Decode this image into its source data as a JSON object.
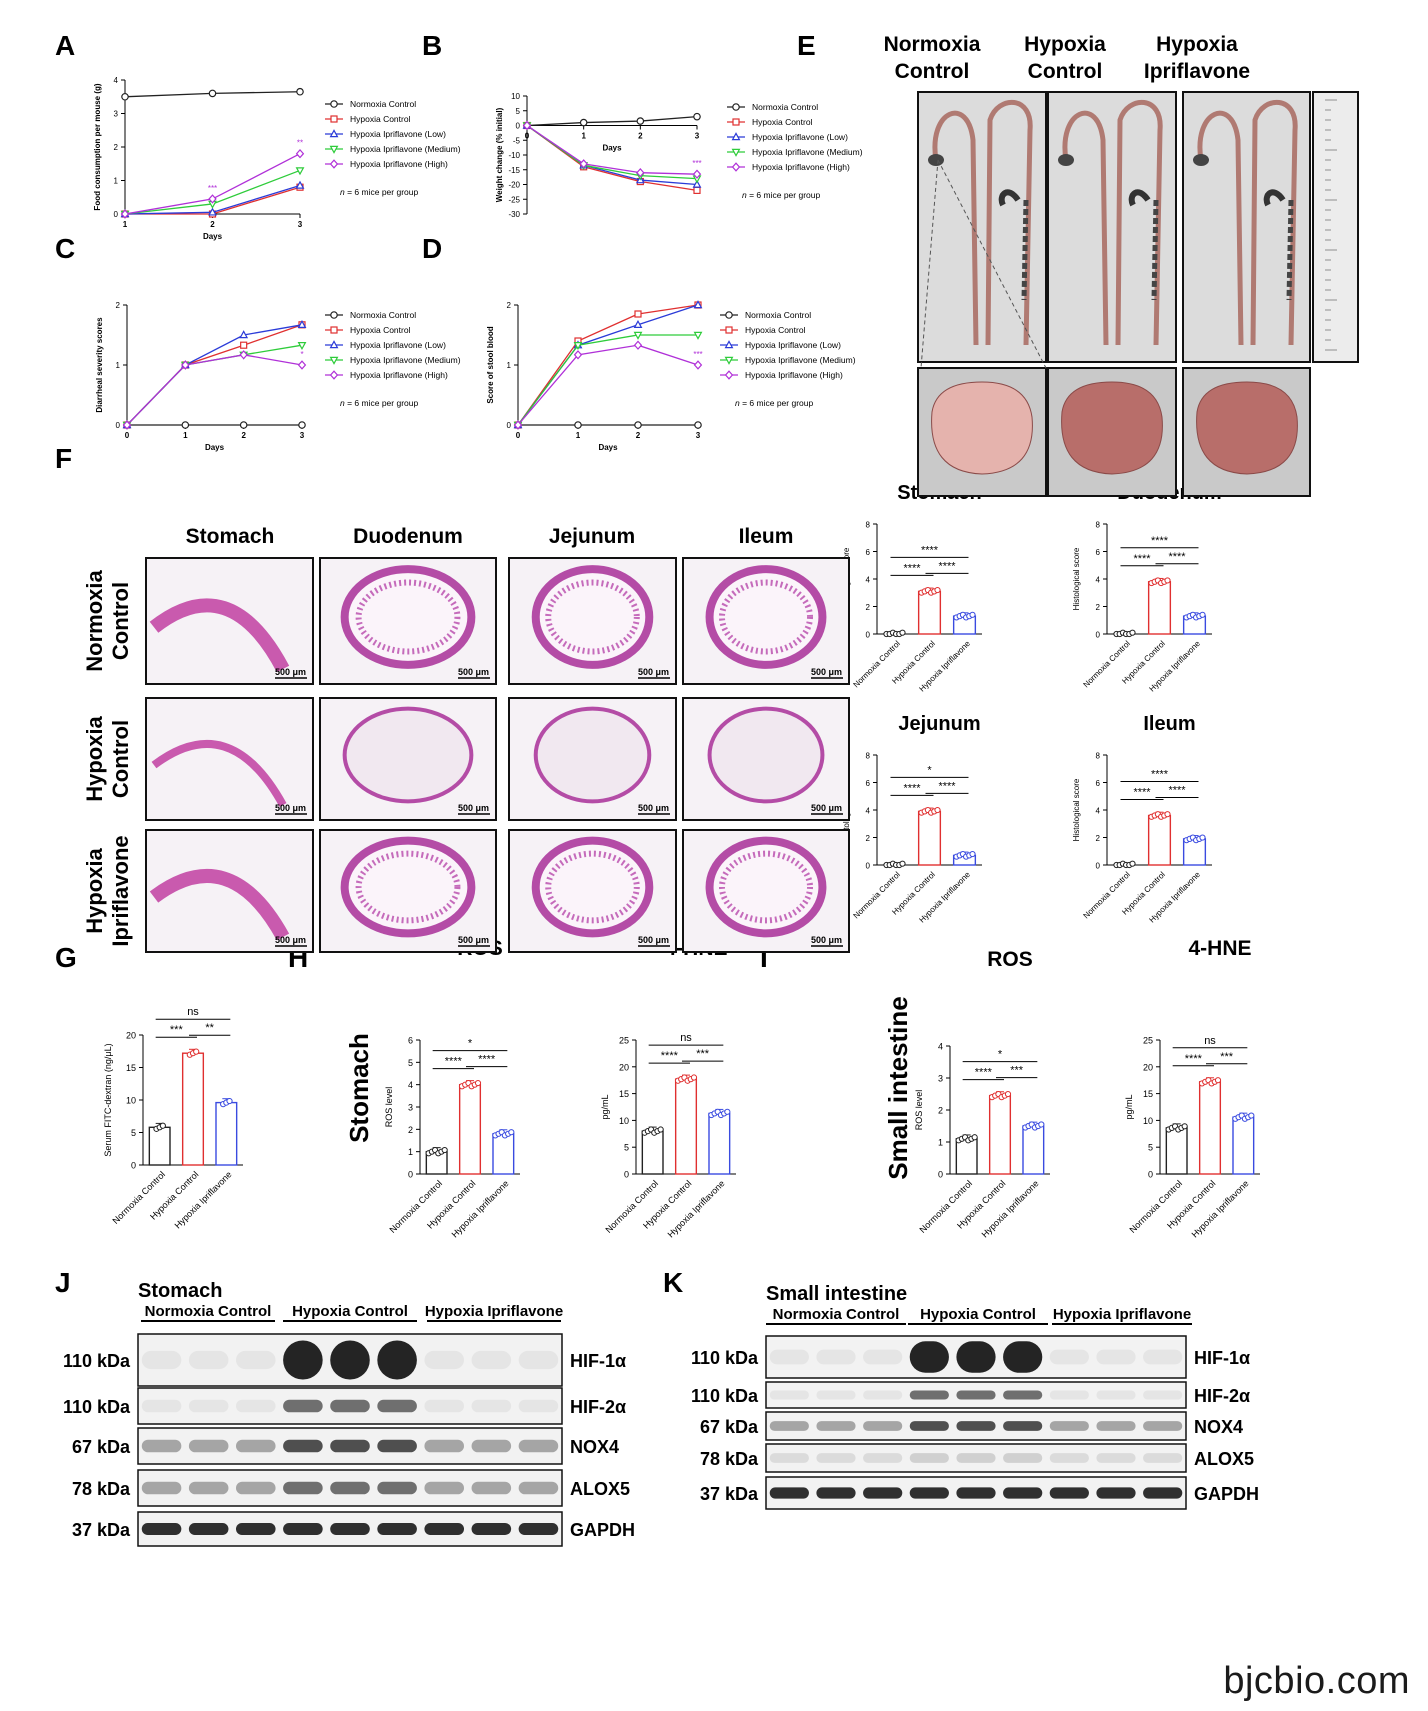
{
  "panel_letters": [
    "A",
    "B",
    "C",
    "D",
    "E",
    "F",
    "G",
    "H",
    "I",
    "J",
    "K"
  ],
  "legend_groups": [
    "Normoxia Control",
    "Hypoxia Control",
    "Hypoxia Ipriflavone (Low)",
    "Hypoxia Ipriflavone (Medium)",
    "Hypoxia Ipriflavone (High)"
  ],
  "n_note_prefix": "n",
  "n_note_suffix": "= 6 mice per group",
  "group_labels": [
    "Normoxia Control",
    "Hypoxia Control",
    "Hypoxia Ipriflavone"
  ],
  "colors": {
    "normoxia": "#222222",
    "hypoxia": "#e03030",
    "low": "#2b3bd8",
    "medium": "#2ecc3a",
    "high": "#b030d8",
    "ipri_bar": "#3a4be0"
  },
  "chart_data": [
    {
      "id": "A",
      "type": "line",
      "xlabel": "Days",
      "ylabel": "Food consumption per mouse (g)",
      "x": [
        1,
        2,
        3
      ],
      "xlim": [
        1,
        3
      ],
      "ylim": [
        0,
        4
      ],
      "yticks": [
        0,
        1,
        2,
        3,
        4
      ],
      "series": [
        {
          "name": "Normoxia Control",
          "values": [
            3.5,
            3.6,
            3.65
          ]
        },
        {
          "name": "Hypoxia Control",
          "values": [
            0,
            0,
            0.8
          ]
        },
        {
          "name": "Hypoxia Ipriflavone (Low)",
          "values": [
            0,
            0.05,
            0.85
          ]
        },
        {
          "name": "Hypoxia Ipriflavone (Medium)",
          "values": [
            0,
            0.3,
            1.3
          ]
        },
        {
          "name": "Hypoxia Ipriflavone (High)",
          "values": [
            0,
            0.45,
            1.8
          ]
        }
      ],
      "annotations": [
        {
          "x": 2,
          "text": "***",
          "color": "#b030d8"
        },
        {
          "x": 3,
          "text": "**",
          "color": "#b030d8"
        }
      ]
    },
    {
      "id": "B",
      "type": "line",
      "xlabel": "Days",
      "ylabel": "Weight change (% initial)",
      "x": [
        0,
        1,
        2,
        3
      ],
      "ylim": [
        -30,
        10
      ],
      "yticks": [
        10,
        5,
        0,
        -5,
        -10,
        -15,
        -20,
        -25,
        -30
      ],
      "series": [
        {
          "name": "Normoxia Control",
          "values": [
            0,
            1,
            1.5,
            3
          ]
        },
        {
          "name": "Hypoxia Control",
          "values": [
            0,
            -14,
            -19,
            -22
          ]
        },
        {
          "name": "Hypoxia Ipriflavone (Low)",
          "values": [
            0,
            -13.5,
            -18.5,
            -20
          ]
        },
        {
          "name": "Hypoxia Ipriflavone (Medium)",
          "values": [
            0,
            -13.5,
            -17,
            -18
          ]
        },
        {
          "name": "Hypoxia Ipriflavone (High)",
          "values": [
            0,
            -13,
            -16,
            -16.5
          ]
        }
      ],
      "annotations": [
        {
          "x": 3,
          "text": "***",
          "color": "#b030d8"
        }
      ]
    },
    {
      "id": "C",
      "type": "line",
      "xlabel": "Days",
      "ylabel": "Diarrheal severity scores",
      "x": [
        0,
        1,
        2,
        3
      ],
      "ylim": [
        0,
        2
      ],
      "yticks": [
        0,
        1,
        2
      ],
      "series": [
        {
          "name": "Normoxia Control",
          "values": [
            0,
            0,
            0,
            0
          ]
        },
        {
          "name": "Hypoxia Control",
          "values": [
            0,
            1,
            1.33,
            1.67
          ]
        },
        {
          "name": "Hypoxia Ipriflavone (Low)",
          "values": [
            0,
            1,
            1.5,
            1.67
          ]
        },
        {
          "name": "Hypoxia Ipriflavone (Medium)",
          "values": [
            0,
            1,
            1.17,
            1.33
          ]
        },
        {
          "name": "Hypoxia Ipriflavone (High)",
          "values": [
            0,
            1,
            1.17,
            1.0
          ]
        }
      ],
      "annotations": [
        {
          "x": 3,
          "text": "*",
          "color": "#b030d8"
        }
      ]
    },
    {
      "id": "D",
      "type": "line",
      "xlabel": "Days",
      "ylabel": "Score of stool blood",
      "x": [
        0,
        1,
        2,
        3
      ],
      "ylim": [
        0,
        2
      ],
      "yticks": [
        0,
        1,
        2
      ],
      "series": [
        {
          "name": "Normoxia Control",
          "values": [
            0,
            0,
            0,
            0
          ]
        },
        {
          "name": "Hypoxia Control",
          "values": [
            0,
            1.4,
            1.85,
            2.0
          ]
        },
        {
          "name": "Hypoxia Ipriflavone (Low)",
          "values": [
            0,
            1.33,
            1.67,
            2.0
          ]
        },
        {
          "name": "Hypoxia Ipriflavone (Medium)",
          "values": [
            0,
            1.33,
            1.5,
            1.5
          ]
        },
        {
          "name": "Hypoxia Ipriflavone (High)",
          "values": [
            0,
            1.17,
            1.33,
            1.0
          ]
        }
      ],
      "annotations": [
        {
          "x": 3,
          "text": "***",
          "color": "#b030d8"
        }
      ]
    },
    {
      "id": "F-stomach",
      "type": "bar",
      "title": "Stomach",
      "ylabel": "Histological score",
      "ylim": [
        0,
        8
      ],
      "yticks": [
        0,
        2,
        4,
        6,
        8
      ],
      "values": [
        0,
        3.1,
        1.3
      ],
      "sig": [
        "****",
        "****",
        "****"
      ]
    },
    {
      "id": "F-duodenum",
      "type": "bar",
      "title": "Duodenum",
      "ylabel": "Histological score",
      "ylim": [
        0,
        8
      ],
      "yticks": [
        0,
        2,
        4,
        6,
        8
      ],
      "values": [
        0,
        3.8,
        1.3
      ],
      "sig": [
        "****",
        "****",
        "****"
      ]
    },
    {
      "id": "F-jejunum",
      "type": "bar",
      "title": "Jejunum",
      "ylabel": "Histological score",
      "ylim": [
        0,
        8
      ],
      "yticks": [
        0,
        2,
        4,
        6,
        8
      ],
      "values": [
        0,
        3.9,
        0.7
      ],
      "sig": [
        "****",
        "****",
        "*"
      ]
    },
    {
      "id": "F-ileum",
      "type": "bar",
      "title": "Ileum",
      "ylabel": "Histological score",
      "ylim": [
        0,
        8
      ],
      "yticks": [
        0,
        2,
        4,
        6,
        8
      ],
      "values": [
        0,
        3.6,
        1.9
      ],
      "sig": [
        "****",
        "****",
        "****"
      ]
    },
    {
      "id": "G",
      "type": "bar",
      "ylabel": "Serum FITC-dextran (ng/μL)",
      "ylim": [
        0,
        20
      ],
      "yticks": [
        0,
        5,
        10,
        15,
        20
      ],
      "values": [
        5.8,
        17.2,
        9.6
      ],
      "sig": [
        "***",
        "**",
        "ns"
      ]
    },
    {
      "id": "H-ros",
      "type": "bar",
      "title": "ROS",
      "ylabel": "ROS level",
      "ylim": [
        0,
        6
      ],
      "yticks": [
        0,
        1,
        2,
        3,
        4,
        5,
        6
      ],
      "values": [
        1.0,
        4.0,
        1.8
      ],
      "sig": [
        "****",
        "****",
        "*"
      ]
    },
    {
      "id": "H-hne",
      "type": "bar",
      "title": "4-HNE",
      "ylabel": "pg/mL",
      "ylim": [
        0,
        25
      ],
      "yticks": [
        0,
        5,
        10,
        15,
        20,
        25
      ],
      "values": [
        8.0,
        17.7,
        11.3
      ],
      "sig": [
        "****",
        "***",
        "ns"
      ]
    },
    {
      "id": "I-ros",
      "type": "bar",
      "title": "ROS",
      "ylabel": "ROS level",
      "ylim": [
        0,
        4
      ],
      "yticks": [
        0,
        1,
        2,
        3,
        4
      ],
      "values": [
        1.1,
        2.45,
        1.5
      ],
      "sig": [
        "****",
        "***",
        "*"
      ]
    },
    {
      "id": "I-hne",
      "type": "bar",
      "title": "4-HNE",
      "ylabel": "pg/mL",
      "ylim": [
        0,
        25
      ],
      "yticks": [
        0,
        5,
        10,
        15,
        20,
        25
      ],
      "values": [
        8.6,
        17.2,
        10.6
      ],
      "sig": [
        "****",
        "***",
        "ns"
      ]
    }
  ],
  "panel_e": {
    "headers": [
      "Normoxia\nControl",
      "Hypoxia\nControl",
      "Hypoxia\nIpriflavone"
    ]
  },
  "panel_f": {
    "columns": [
      "Stomach",
      "Duodenum",
      "Jejunum",
      "Ileum"
    ],
    "rows": [
      "Normoxia Control",
      "Hypoxia Control",
      "Hypoxia Ipriflavone"
    ],
    "scale": "500 μm"
  },
  "side_labels": {
    "stomach": "Stomach",
    "small_intestine": "Small intestine"
  },
  "blots": {
    "J": {
      "title": "Stomach",
      "groups": [
        "Normoxia Control",
        "Hypoxia Control",
        "Hypoxia Ipriflavone"
      ],
      "rows": [
        {
          "kda": "110 kDa",
          "name": "HIF-1α"
        },
        {
          "kda": "110 kDa",
          "name": "HIF-2α"
        },
        {
          "kda": "67 kDa",
          "name": "NOX4"
        },
        {
          "kda": "78 kDa",
          "name": "ALOX5"
        },
        {
          "kda": "37 kDa",
          "name": "GAPDH"
        }
      ]
    },
    "K": {
      "title": "Small intestine",
      "groups": [
        "Normoxia Control",
        "Hypoxia Control",
        "Hypoxia Ipriflavone"
      ],
      "rows": [
        {
          "kda": "110 kDa",
          "name": "HIF-1α"
        },
        {
          "kda": "110 kDa",
          "name": "HIF-2α"
        },
        {
          "kda": "67 kDa",
          "name": "NOX4"
        },
        {
          "kda": "78 kDa",
          "name": "ALOX5"
        },
        {
          "kda": "37 kDa",
          "name": "GAPDH"
        }
      ]
    }
  },
  "watermark": "bjcbio.com"
}
